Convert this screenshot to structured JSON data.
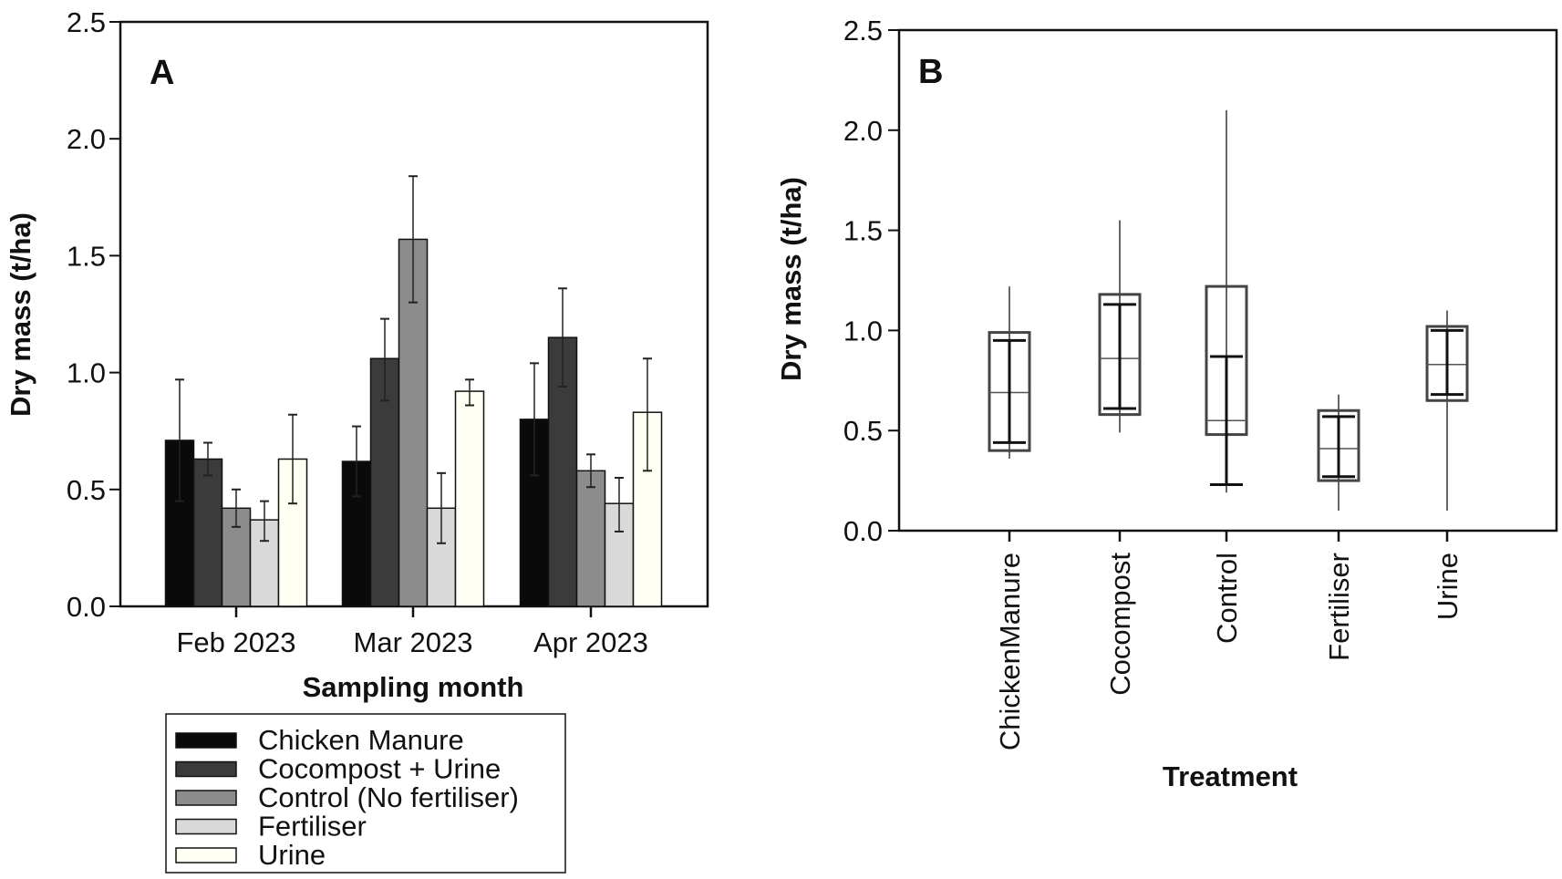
{
  "chart_data": [
    {
      "type": "bar",
      "panel_label": "A",
      "xlabel": "Sampling month",
      "ylabel": "Dry mass (t/ha)",
      "ylim": [
        0,
        2.5
      ],
      "yticks": [
        "0.0",
        "0.5",
        "1.0",
        "1.5",
        "2.0",
        "2.5"
      ],
      "categories": [
        "Feb 2023",
        "Mar 2023",
        "Apr 2023"
      ],
      "legend_position": "below",
      "series": [
        {
          "name": "Chicken Manure",
          "color": "#0a0a0a",
          "values": [
            0.71,
            0.62,
            0.8
          ],
          "err_low": [
            0.45,
            0.47,
            0.56
          ],
          "err_high": [
            0.97,
            0.77,
            1.04
          ]
        },
        {
          "name": "Cocompost + Urine",
          "color": "#3b3b3b",
          "values": [
            0.63,
            1.06,
            1.15
          ],
          "err_low": [
            0.56,
            0.88,
            0.94
          ],
          "err_high": [
            0.7,
            1.23,
            1.36
          ]
        },
        {
          "name": "Control (No fertiliser)",
          "color": "#8c8c8c",
          "values": [
            0.42,
            1.57,
            0.58
          ],
          "err_low": [
            0.34,
            1.3,
            0.51
          ],
          "err_high": [
            0.5,
            1.84,
            0.65
          ]
        },
        {
          "name": "Fertiliser",
          "color": "#d9d9d9",
          "values": [
            0.37,
            0.42,
            0.44
          ],
          "err_low": [
            0.28,
            0.27,
            0.32
          ],
          "err_high": [
            0.45,
            0.57,
            0.55
          ]
        },
        {
          "name": "Urine",
          "color": "#fffff4",
          "values": [
            0.63,
            0.92,
            0.83
          ],
          "err_low": [
            0.44,
            0.86,
            0.58
          ],
          "err_high": [
            0.82,
            0.97,
            1.06
          ]
        }
      ]
    },
    {
      "type": "box",
      "panel_label": "B",
      "xlabel": "Treatment",
      "ylabel": "Dry mass (t/ha)",
      "ylim": [
        0,
        2.5
      ],
      "yticks": [
        "0.0",
        "0.5",
        "1.0",
        "1.5",
        "2.0",
        "2.5"
      ],
      "categories": [
        "ChickenManure",
        "Cocompost",
        "Control",
        "Fertiliser",
        "Urine"
      ],
      "boxes": [
        {
          "min": 0.36,
          "q1": 0.4,
          "median": 0.69,
          "q3": 0.99,
          "max": 1.22,
          "bar_low": 0.44,
          "bar_high": 0.95
        },
        {
          "min": 0.49,
          "q1": 0.58,
          "median": 0.86,
          "q3": 1.18,
          "max": 1.55,
          "bar_low": 0.61,
          "bar_high": 1.13
        },
        {
          "min": 0.19,
          "q1": 0.48,
          "median": 0.55,
          "q3": 1.22,
          "max": 2.1,
          "bar_low": 0.23,
          "bar_high": 0.87
        },
        {
          "min": 0.1,
          "q1": 0.25,
          "median": 0.41,
          "q3": 0.6,
          "max": 0.68,
          "bar_low": 0.27,
          "bar_high": 0.57
        },
        {
          "min": 0.1,
          "q1": 0.65,
          "median": 0.83,
          "q3": 1.02,
          "max": 1.1,
          "bar_low": 0.68,
          "bar_high": 1.0
        }
      ]
    }
  ]
}
